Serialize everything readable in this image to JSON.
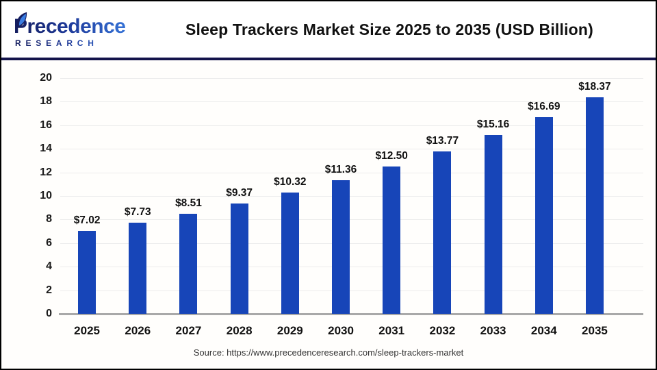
{
  "header": {
    "logo": {
      "line1": "Precedence",
      "line2": "RESEARCH"
    },
    "title": "Sleep Trackers Market Size 2025 to 2035 (USD Billion)"
  },
  "chart_data": {
    "type": "bar",
    "title": "Sleep Trackers Market Size 2025 to 2035 (USD Billion)",
    "categories": [
      "2025",
      "2026",
      "2027",
      "2028",
      "2029",
      "2030",
      "2031",
      "2032",
      "2033",
      "2034",
      "2035"
    ],
    "values": [
      7.02,
      7.73,
      8.51,
      9.37,
      10.32,
      11.36,
      12.5,
      13.77,
      15.16,
      16.69,
      18.37
    ],
    "value_labels": [
      "$7.02",
      "$7.73",
      "$8.51",
      "$9.37",
      "$10.32",
      "$11.36",
      "$12.50",
      "$13.77",
      "$15.16",
      "$16.69",
      "$18.37"
    ],
    "xlabel": "",
    "ylabel": "",
    "ylim": [
      0,
      20
    ],
    "yticks": [
      0,
      2,
      4,
      6,
      8,
      10,
      12,
      14,
      16,
      18,
      20
    ],
    "grid": true,
    "legend": "none",
    "bar_color": "#1745B8"
  },
  "footer": {
    "source": "Source: https://www.precedenceresearch.com/sleep-trackers-market"
  },
  "colors": {
    "bar": "#1745B8",
    "separator": "#13134B",
    "gridline": "#ECECEC",
    "baseline": "#A9A9A9",
    "logo_dark": "#141D5E",
    "logo_light": "#3A7DE2",
    "text": "#111111"
  }
}
